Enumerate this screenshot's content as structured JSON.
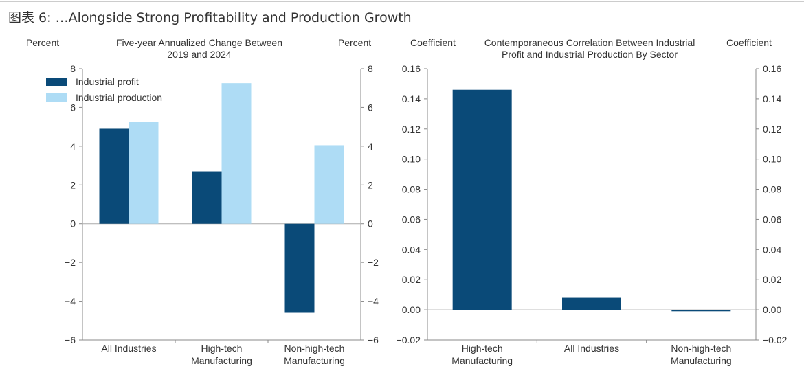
{
  "figure_title": "图表 6: …Alongside Strong Profitability and Production Growth",
  "colors": {
    "profit": "#0a4a78",
    "production": "#aedcf5",
    "axis": "#888888"
  },
  "chart_data": [
    {
      "type": "bar",
      "title": "Five-year Annualized Change Between 2019 and 2024",
      "title_lines": [
        "Five-year Annualized Change Between",
        "2019 and 2024"
      ],
      "ylabel_left": "Percent",
      "ylabel_right": "Percent",
      "ylim": [
        -6,
        8
      ],
      "yticks": [
        -6,
        -4,
        -2,
        0,
        2,
        4,
        6,
        8
      ],
      "ytick_labels": [
        "−6",
        "−4",
        "−2",
        "0",
        "2",
        "4",
        "6",
        "8"
      ],
      "categories": [
        [
          "All Industries"
        ],
        [
          "High-tech",
          "Manufacturing"
        ],
        [
          "Non-high-tech",
          "Manufacturing"
        ]
      ],
      "legend_placement": "top-left",
      "grid": false,
      "series": [
        {
          "name": "Industrial profit",
          "values": [
            4.9,
            2.7,
            -4.6
          ]
        },
        {
          "name": "Industrial production",
          "values": [
            5.25,
            7.25,
            4.05
          ]
        }
      ]
    },
    {
      "type": "bar",
      "title": "Contemporaneous Correlation Between Industrial Profit and Industrial Production By Sector",
      "title_lines": [
        "Contemporaneous Correlation Between Industrial",
        "Profit and Industrial Production By Sector"
      ],
      "ylabel_left": "Coefficient",
      "ylabel_right": "Coefficient",
      "ylim": [
        -0.02,
        0.16
      ],
      "yticks": [
        -0.02,
        0,
        0.02,
        0.04,
        0.06,
        0.08,
        0.1,
        0.12,
        0.14,
        0.16
      ],
      "ytick_labels": [
        "−0.02",
        "0.00",
        "0.02",
        "0.04",
        "0.06",
        "0.08",
        "0.10",
        "0.12",
        "0.14",
        "0.16"
      ],
      "categories": [
        [
          "High-tech",
          "Manufacturing"
        ],
        [
          "All Industries"
        ],
        [
          "Non-high-tech",
          "Manufacturing"
        ]
      ],
      "grid": false,
      "series": [
        {
          "values": [
            0.146,
            0.008,
            -0.001
          ]
        }
      ]
    }
  ]
}
